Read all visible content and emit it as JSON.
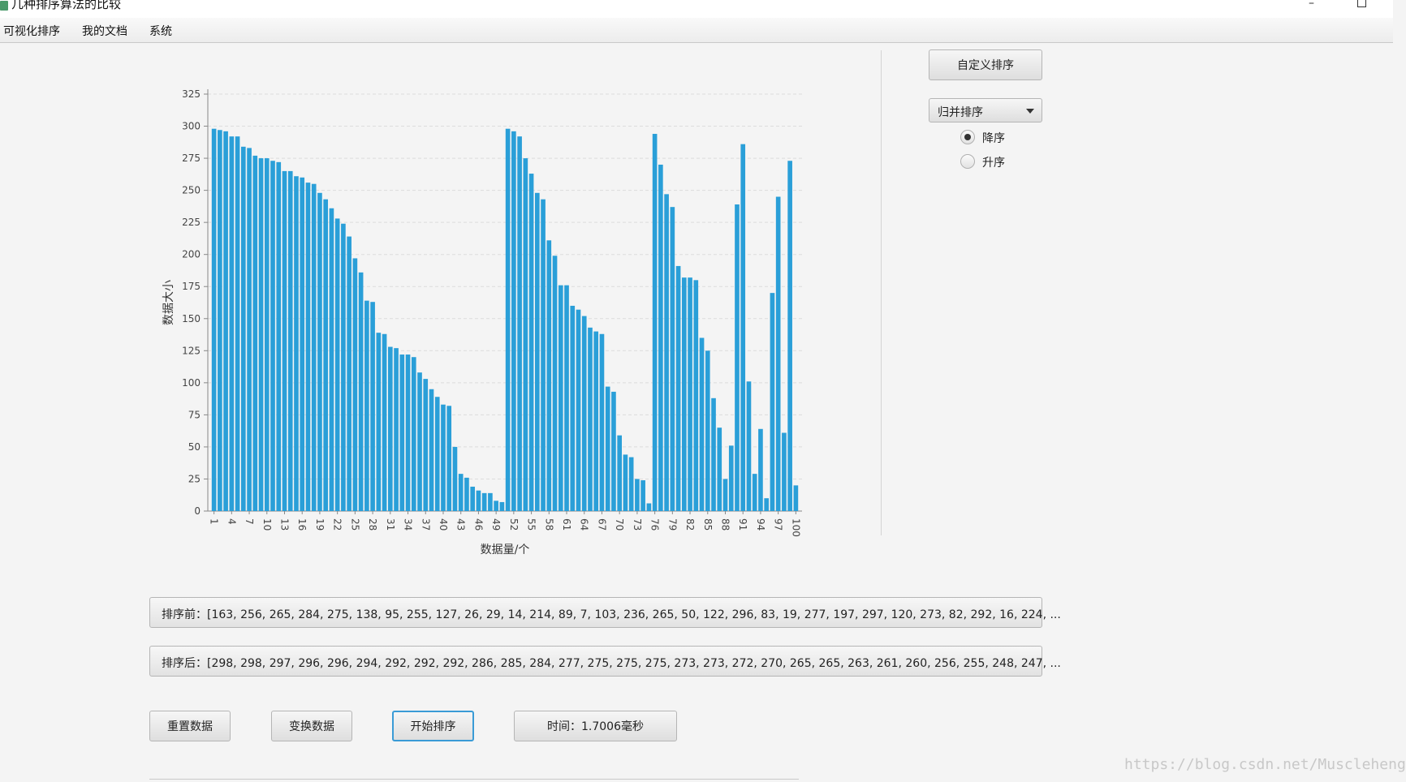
{
  "window": {
    "title": "几种排序算法的比较",
    "minimize_glyph": "–"
  },
  "menu": {
    "items": [
      "可视化排序",
      "我的文档",
      "系统"
    ]
  },
  "controls": {
    "custom_sort_label": "自定义排序",
    "algorithm_selected": "归并排序",
    "order_options": [
      {
        "label": "降序",
        "selected": true
      },
      {
        "label": "升序",
        "selected": false
      }
    ]
  },
  "fields": {
    "before_text": "排序前：[163, 256, 265, 284, 275, 138, 95, 255, 127, 26, 29, 14, 214, 89, 7, 103, 236, 265, 50, 122, 296, 83, 19, 277, 197, 297, 120, 273, 82, 292, 16, 224, ...",
    "after_text": "排序后：[298, 298, 297, 296, 296, 294, 292, 292, 292, 286, 285, 284, 277, 275, 275, 275, 273, 273, 272, 270, 265, 265, 263, 261, 260, 256, 255, 248, 247, ..."
  },
  "buttons": {
    "reset": "重置数据",
    "shuffle": "变换数据",
    "start": "开始排序",
    "time": "时间：1.7006毫秒"
  },
  "watermark": "https://blog.csdn.net/Muscleheng",
  "chart_data": {
    "type": "bar",
    "xlabel": "数据量/个",
    "ylabel": "数据大小",
    "ylim": [
      0,
      325
    ],
    "y_ticks": [
      0,
      25,
      50,
      75,
      100,
      125,
      150,
      175,
      200,
      225,
      250,
      275,
      300,
      325
    ],
    "x_ticks": [
      "1",
      "4",
      "7",
      "10",
      "13",
      "16",
      "19",
      "22",
      "25",
      "28",
      "31",
      "34",
      "37",
      "40",
      "43",
      "46",
      "49",
      "52",
      "55",
      "58",
      "61",
      "64",
      "67",
      "70",
      "73",
      "76",
      "79",
      "82",
      "85",
      "88",
      "91",
      "94",
      "97",
      "100"
    ],
    "grid": true,
    "bar_color": "#2a9fd8",
    "categories": [
      "1",
      "2",
      "3",
      "4",
      "5",
      "6",
      "7",
      "8",
      "9",
      "10",
      "11",
      "12",
      "13",
      "14",
      "15",
      "16",
      "17",
      "18",
      "19",
      "20",
      "21",
      "22",
      "23",
      "24",
      "25",
      "26",
      "27",
      "28",
      "29",
      "30",
      "31",
      "32",
      "33",
      "34",
      "35",
      "36",
      "37",
      "38",
      "39",
      "40",
      "41",
      "42",
      "43",
      "44",
      "45",
      "46",
      "47",
      "48",
      "49",
      "50",
      "51",
      "52",
      "53",
      "54",
      "55",
      "56",
      "57",
      "58",
      "59",
      "60",
      "61",
      "62",
      "63",
      "64",
      "65",
      "66",
      "67",
      "68",
      "69",
      "70",
      "71",
      "72",
      "73",
      "74",
      "75",
      "76",
      "77",
      "78",
      "79",
      "80",
      "81",
      "82",
      "83",
      "84",
      "85",
      "86",
      "87",
      "88",
      "89",
      "90",
      "91",
      "92",
      "93",
      "94",
      "95",
      "96",
      "97",
      "98",
      "99",
      "100"
    ],
    "values": [
      298,
      297,
      296,
      292,
      292,
      284,
      283,
      277,
      275,
      275,
      273,
      272,
      265,
      265,
      261,
      260,
      256,
      255,
      248,
      243,
      236,
      228,
      224,
      214,
      197,
      186,
      164,
      163,
      139,
      138,
      128,
      127,
      122,
      122,
      120,
      108,
      103,
      95,
      89,
      83,
      82,
      50,
      29,
      26,
      19,
      16,
      14,
      14,
      8,
      7,
      298,
      296,
      292,
      275,
      263,
      248,
      243,
      211,
      199,
      176,
      176,
      160,
      157,
      152,
      143,
      140,
      138,
      97,
      93,
      59,
      44,
      42,
      25,
      24,
      6,
      294,
      270,
      247,
      237,
      191,
      182,
      182,
      180,
      135,
      125,
      88,
      65,
      25,
      51,
      239,
      286,
      101,
      29,
      64,
      10,
      170,
      245,
      61,
      273,
      20
    ]
  }
}
